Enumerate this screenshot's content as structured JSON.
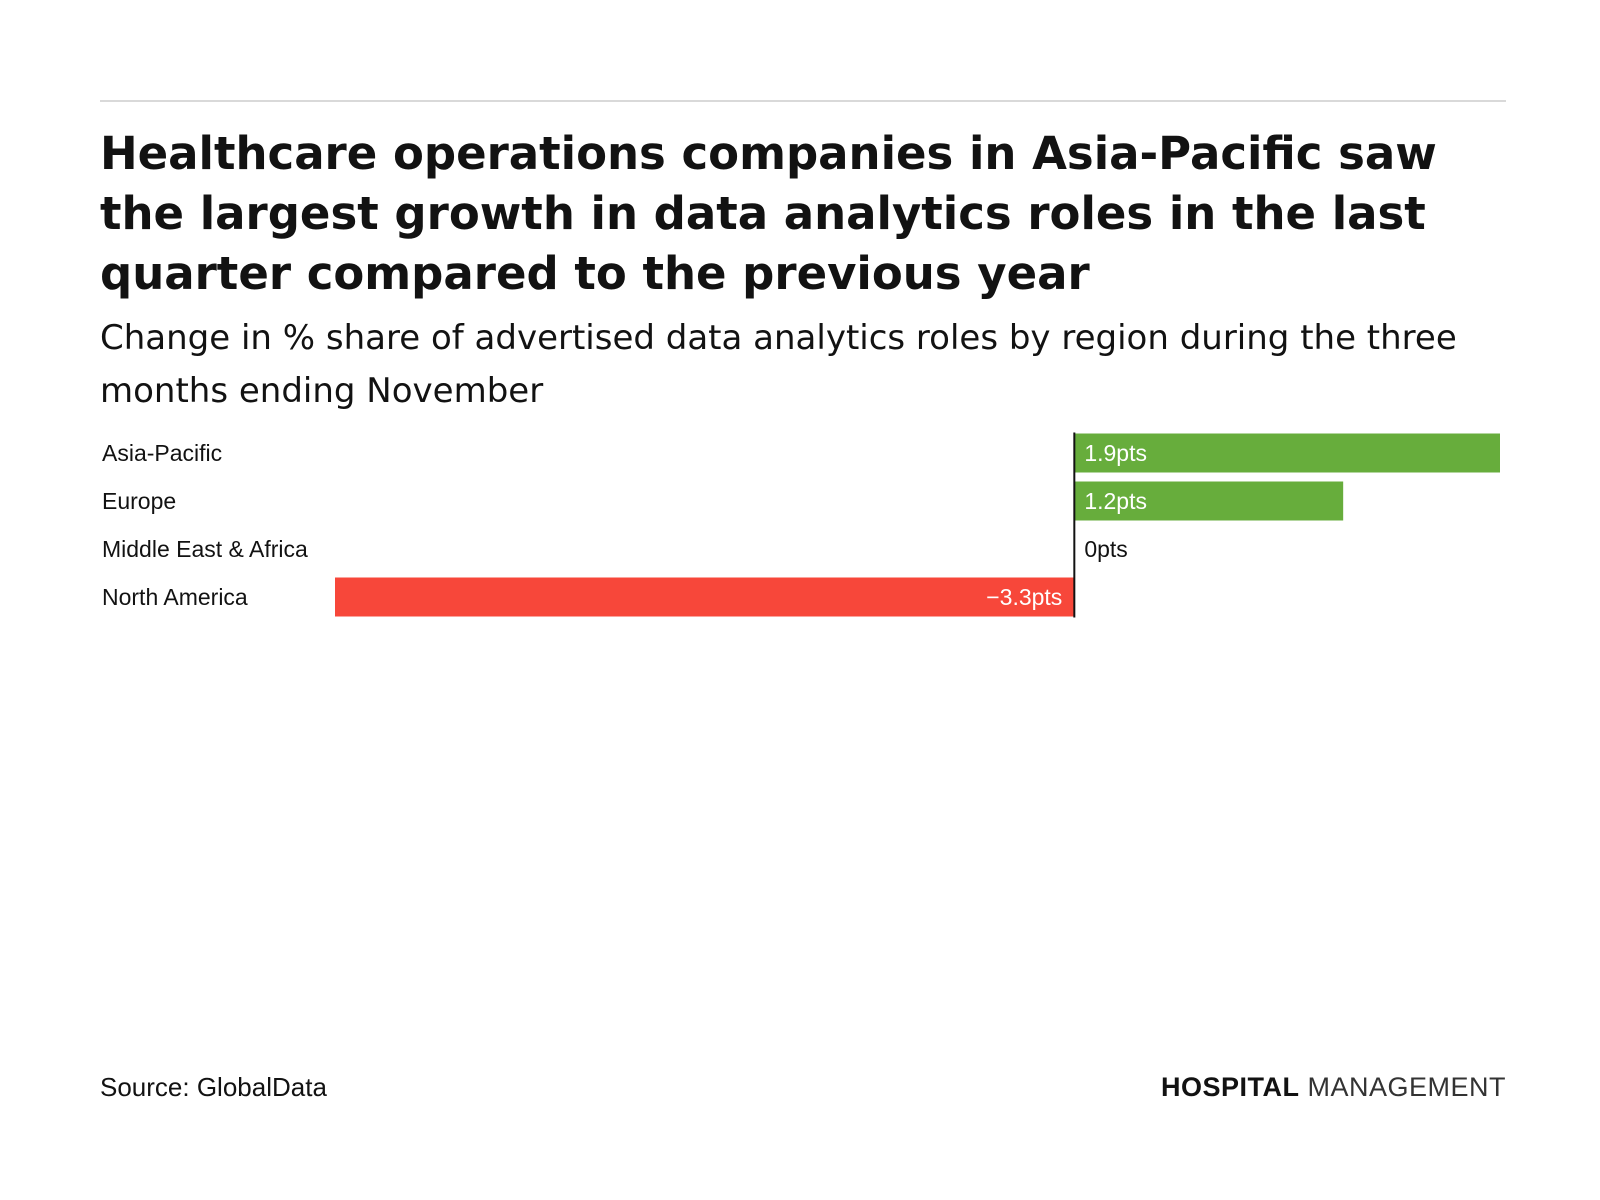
{
  "header": {
    "title": "Healthcare operations companies in Asia-Pacific saw the largest growth in data analytics roles in the last quarter compared to the previous year",
    "subtitle": "Change in % share of advertised data analytics roles by region during the three months ending November"
  },
  "footer": {
    "source": "Source: GlobalData",
    "brand_bold": "HOSPITAL",
    "brand_light": "MANAGEMENT"
  },
  "colors": {
    "positive": "#67ad3c",
    "negative": "#f7473a",
    "axis": "#121212",
    "text": "#121212",
    "label_on_bar": "#ffffff"
  },
  "chart_data": {
    "type": "bar",
    "orientation": "horizontal",
    "title": "Healthcare operations companies in Asia-Pacific saw the largest growth in data analytics roles in the last quarter compared to the previous year",
    "subtitle": "Change in % share of advertised data analytics roles by region during the three months ending November",
    "categories": [
      "Asia-Pacific",
      "Europe",
      "Middle East & Africa",
      "North America"
    ],
    "values": [
      1.9,
      1.2,
      0,
      -3.3
    ],
    "value_labels": [
      "1.9pts",
      "1.2pts",
      "0pts",
      "−3.3pts"
    ],
    "unit": "pts",
    "xlim": [
      -3.3,
      1.9
    ],
    "grid": false,
    "legend": "none"
  }
}
